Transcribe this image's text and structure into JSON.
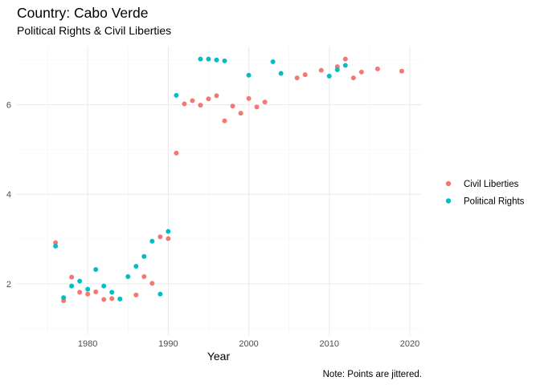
{
  "chart_data": {
    "type": "scatter",
    "title": "Country: Cabo Verde",
    "subtitle": "Political Rights & Civil Liberties",
    "xlabel": "Year",
    "ylabel": "",
    "caption": "Note: Points are jittered.",
    "xlim": [
      1971.2,
      2021.5
    ],
    "ylim": [
      0.85,
      7.3
    ],
    "x_ticks": [
      1980,
      1990,
      2000,
      2010,
      2020
    ],
    "y_ticks": [
      2,
      4,
      6
    ],
    "grid": true,
    "legend_position": "right",
    "series": [
      {
        "name": "Civil Liberties",
        "color": "#F8766D",
        "points": [
          [
            1976,
            2.92
          ],
          [
            1977,
            1.62
          ],
          [
            1978,
            2.15
          ],
          [
            1979,
            1.81
          ],
          [
            1980,
            1.77
          ],
          [
            1981,
            1.82
          ],
          [
            1982,
            1.65
          ],
          [
            1983,
            1.67
          ],
          [
            1986,
            1.75
          ],
          [
            1987,
            2.16
          ],
          [
            1988,
            2.01
          ],
          [
            1989,
            3.05
          ],
          [
            1990,
            3.01
          ],
          [
            1991,
            4.92
          ],
          [
            1992,
            6.02
          ],
          [
            1993,
            6.09
          ],
          [
            1994,
            5.99
          ],
          [
            1995,
            6.13
          ],
          [
            1996,
            6.2
          ],
          [
            1997,
            5.64
          ],
          [
            1998,
            5.97
          ],
          [
            1999,
            5.81
          ],
          [
            2000,
            6.14
          ],
          [
            2001,
            5.95
          ],
          [
            2002,
            6.06
          ],
          [
            2006,
            6.6
          ],
          [
            2007,
            6.67
          ],
          [
            2009,
            6.77
          ],
          [
            2011,
            6.85
          ],
          [
            2012,
            7.02
          ],
          [
            2013,
            6.6
          ],
          [
            2014,
            6.73
          ],
          [
            2016,
            6.8
          ],
          [
            2019,
            6.75
          ]
        ]
      },
      {
        "name": "Political Rights",
        "color": "#00BFC4",
        "points": [
          [
            1976,
            2.84
          ],
          [
            1977,
            1.69
          ],
          [
            1978,
            1.95
          ],
          [
            1979,
            2.06
          ],
          [
            1980,
            1.88
          ],
          [
            1981,
            2.32
          ],
          [
            1982,
            1.95
          ],
          [
            1983,
            1.81
          ],
          [
            1984,
            1.66
          ],
          [
            1985,
            2.16
          ],
          [
            1986,
            2.39
          ],
          [
            1987,
            2.61
          ],
          [
            1988,
            2.95
          ],
          [
            1989,
            1.77
          ],
          [
            1990,
            3.17
          ],
          [
            1991,
            6.21
          ],
          [
            1994,
            7.02
          ],
          [
            1995,
            7.02
          ],
          [
            1996,
            7.0
          ],
          [
            1997,
            6.98
          ],
          [
            2000,
            6.66
          ],
          [
            2003,
            6.96
          ],
          [
            2004,
            6.7
          ],
          [
            2010,
            6.64
          ],
          [
            2011,
            6.78
          ],
          [
            2012,
            6.88
          ]
        ]
      }
    ]
  }
}
